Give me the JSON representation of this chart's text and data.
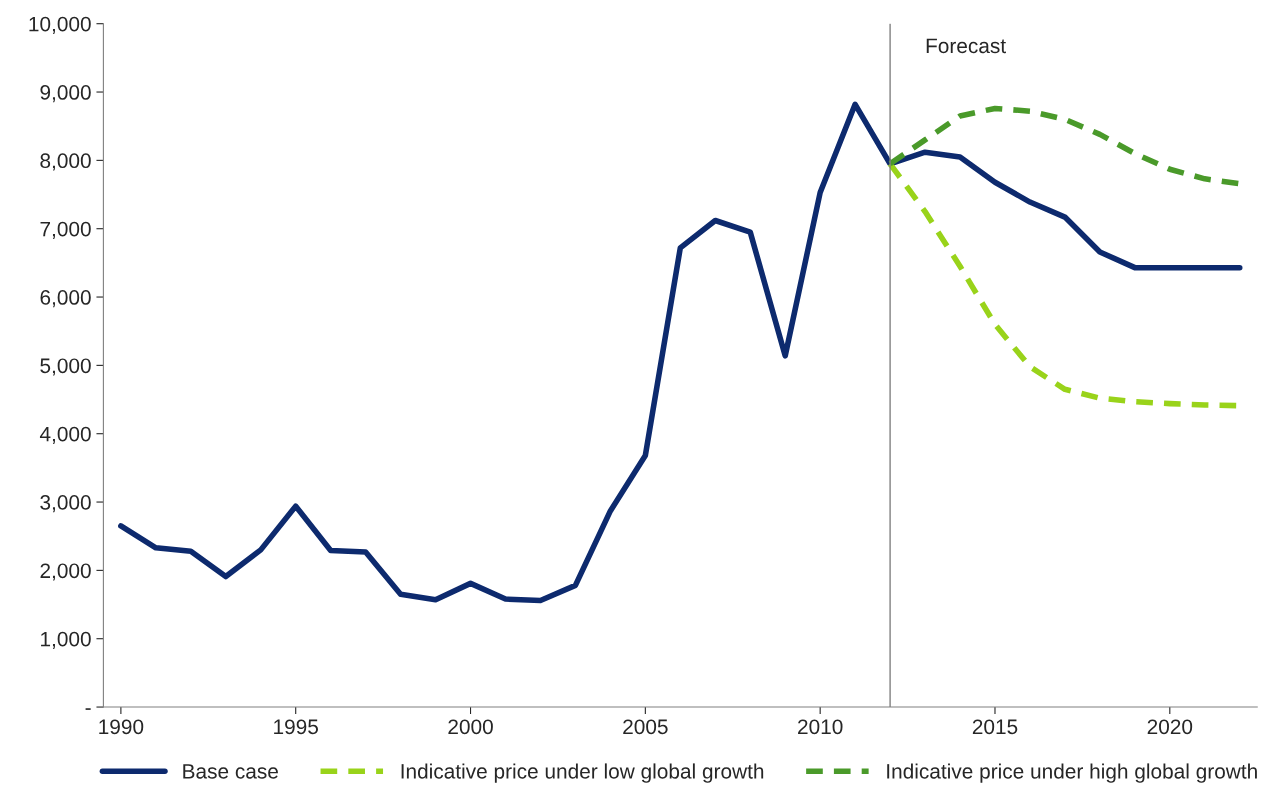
{
  "chart_data": {
    "type": "line",
    "x": [
      1990,
      1991,
      1992,
      1993,
      1994,
      1995,
      1996,
      1997,
      1998,
      1999,
      2000,
      2001,
      2002,
      2003,
      2004,
      2005,
      2006,
      2007,
      2008,
      2009,
      2010,
      2011,
      2012,
      2013,
      2014,
      2015,
      2016,
      2017,
      2018,
      2019,
      2020,
      2021,
      2022
    ],
    "series": [
      {
        "name": "Base case",
        "color": "#0d2a6e",
        "line_style": "solid",
        "values": [
          2650,
          2330,
          2280,
          1910,
          2300,
          2940,
          2290,
          2270,
          1650,
          1570,
          1810,
          1580,
          1560,
          1780,
          2870,
          3680,
          6720,
          7120,
          6950,
          5140,
          7530,
          8820,
          7950,
          8120,
          8050,
          7680,
          7390,
          7170,
          6660,
          6430,
          6430,
          6430,
          6430
        ]
      },
      {
        "name": "Indicative price under low global growth",
        "color": "#99d31a",
        "line_style": "dashed",
        "x": [
          2012,
          2013,
          2014,
          2015,
          2016,
          2017,
          2018,
          2019,
          2020,
          2021,
          2022
        ],
        "values": [
          7950,
          7250,
          6450,
          5600,
          4980,
          4650,
          4520,
          4470,
          4440,
          4420,
          4410
        ]
      },
      {
        "name": "Indicative price under high global growth",
        "color": "#4a9a2a",
        "line_style": "dashed",
        "x": [
          2012,
          2013,
          2014,
          2015,
          2016,
          2017,
          2018,
          2019,
          2020,
          2021,
          2022
        ],
        "values": [
          7950,
          8300,
          8650,
          8760,
          8720,
          8600,
          8380,
          8100,
          7870,
          7730,
          7660
        ]
      }
    ],
    "xlim": [
      1989.5,
      2022.5
    ],
    "xticks": [
      1990,
      1995,
      2000,
      2005,
      2010,
      2015,
      2020
    ],
    "ylim": [
      0,
      10000
    ],
    "yticks": [
      {
        "value": 0,
        "label": "-"
      },
      {
        "value": 1000,
        "label": "1,000"
      },
      {
        "value": 2000,
        "label": "2,000"
      },
      {
        "value": 3000,
        "label": "3,000"
      },
      {
        "value": 4000,
        "label": "4,000"
      },
      {
        "value": 5000,
        "label": "5,000"
      },
      {
        "value": 6000,
        "label": "6,000"
      },
      {
        "value": 7000,
        "label": "7,000"
      },
      {
        "value": 8000,
        "label": "8,000"
      },
      {
        "value": 9000,
        "label": "9,000"
      },
      {
        "value": 10000,
        "label": "10,000"
      }
    ],
    "ref_lines": [
      {
        "axis": "x",
        "value": 2012,
        "label": "Forecast",
        "color": "#808080"
      }
    ],
    "grid": false,
    "legend": "bottom",
    "marker": "none"
  }
}
